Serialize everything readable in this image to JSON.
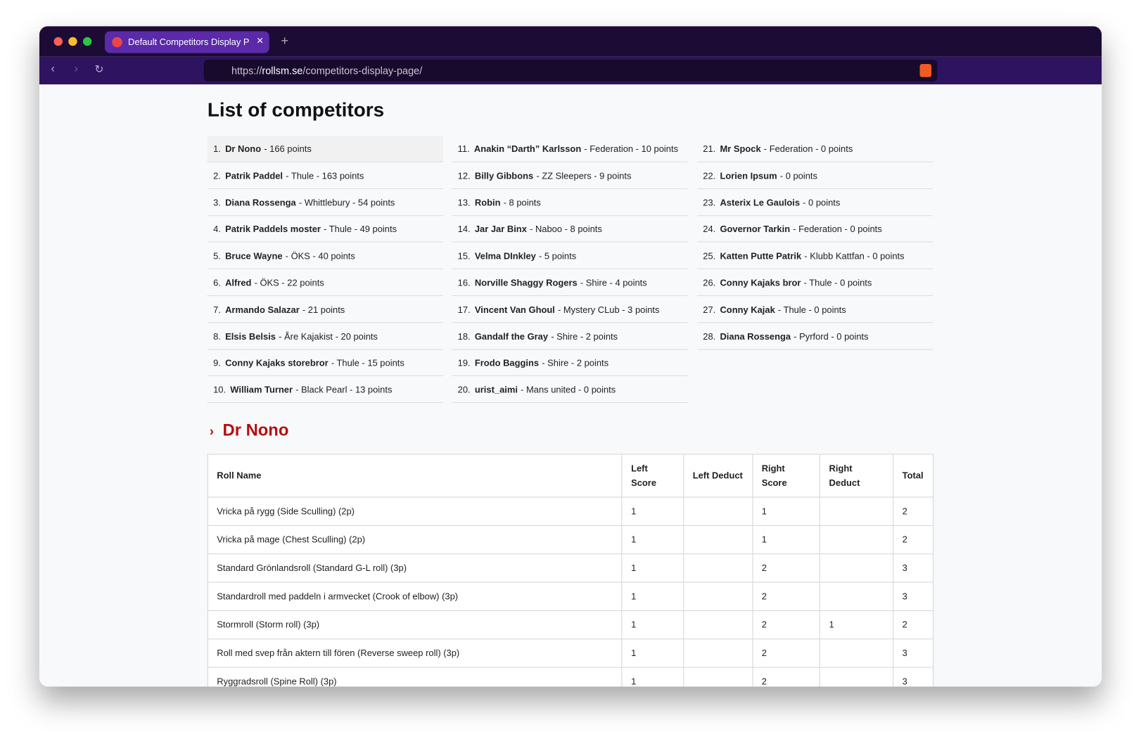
{
  "browser": {
    "tab_title": "Default Competitors Display P",
    "url": {
      "scheme": "https://",
      "domain": "rollsm.se",
      "path": "/competitors-display-page/"
    }
  },
  "heading": "List of competitors",
  "competitors": [
    {
      "rank": "1.",
      "name": "Dr Nono",
      "detail": "- 166 points"
    },
    {
      "rank": "2.",
      "name": "Patrik Paddel",
      "detail": "- Thule - 163 points"
    },
    {
      "rank": "3.",
      "name": "Diana Rossenga",
      "detail": "- Whittlebury - 54 points"
    },
    {
      "rank": "4.",
      "name": "Patrik Paddels moster",
      "detail": "- Thule - 49 points"
    },
    {
      "rank": "5.",
      "name": "Bruce Wayne",
      "detail": "- ÖKS - 40 points"
    },
    {
      "rank": "6.",
      "name": "Alfred",
      "detail": "- ÖKS - 22 points"
    },
    {
      "rank": "7.",
      "name": "Armando Salazar",
      "detail": "- 21 points"
    },
    {
      "rank": "8.",
      "name": "Elsis Belsis",
      "detail": "- Åre Kajakist - 20 points"
    },
    {
      "rank": "9.",
      "name": "Conny Kajaks storebror",
      "detail": "- Thule - 15 points"
    },
    {
      "rank": "10.",
      "name": "William Turner",
      "detail": "- Black Pearl - 13 points"
    },
    {
      "rank": "11.",
      "name": "Anakin “Darth” Karlsson",
      "detail": "- Federation - 10 points"
    },
    {
      "rank": "12.",
      "name": "Billy Gibbons",
      "detail": "- ZZ Sleepers - 9 points"
    },
    {
      "rank": "13.",
      "name": "Robin",
      "detail": "- 8 points"
    },
    {
      "rank": "14.",
      "name": "Jar Jar Binx",
      "detail": "- Naboo - 8 points"
    },
    {
      "rank": "15.",
      "name": "Velma DInkley",
      "detail": "- 5 points"
    },
    {
      "rank": "16.",
      "name": "Norville Shaggy Rogers",
      "detail": "- Shire - 4 points"
    },
    {
      "rank": "17.",
      "name": "Vincent Van Ghoul",
      "detail": "- Mystery CLub - 3 points"
    },
    {
      "rank": "18.",
      "name": "Gandalf the Gray",
      "detail": "- Shire - 2 points"
    },
    {
      "rank": "19.",
      "name": "Frodo Baggins",
      "detail": "- Shire - 2 points"
    },
    {
      "rank": "20.",
      "name": "urist_aimi",
      "detail": "- Mans united - 0 points"
    },
    {
      "rank": "21.",
      "name": "Mr Spock",
      "detail": "- Federation - 0 points"
    },
    {
      "rank": "22.",
      "name": "Lorien Ipsum",
      "detail": "- 0 points"
    },
    {
      "rank": "23.",
      "name": "Asterix Le Gaulois",
      "detail": "- 0 points"
    },
    {
      "rank": "24.",
      "name": "Governor Tarkin",
      "detail": "- Federation - 0 points"
    },
    {
      "rank": "25.",
      "name": "Katten Putte Patrik",
      "detail": "- Klubb Kattfan - 0 points"
    },
    {
      "rank": "26.",
      "name": "Conny Kajaks bror",
      "detail": "- Thule - 0 points"
    },
    {
      "rank": "27.",
      "name": "Conny Kajak",
      "detail": "- Thule - 0 points"
    },
    {
      "rank": "28.",
      "name": "Diana Rossenga",
      "detail": "- Pyrford - 0 points"
    }
  ],
  "section": {
    "title": "Dr Nono",
    "table": {
      "headers": [
        "Roll Name",
        "Left Score",
        "Left Deduct",
        "Right Score",
        "Right Deduct",
        "Total"
      ],
      "rows": [
        [
          "Vricka på rygg (Side Sculling) (2p)",
          1,
          null,
          1,
          null,
          2
        ],
        [
          "Vricka på mage (Chest Sculling) (2p)",
          1,
          null,
          1,
          null,
          2
        ],
        [
          "Standard Grönlandsroll (Standard G-L roll) (3p)",
          1,
          null,
          2,
          null,
          3
        ],
        [
          "Standardroll med paddeln i armvecket (Crook of elbow) (3p)",
          1,
          null,
          2,
          null,
          3
        ],
        [
          "Stormroll (Storm roll) (3p)",
          1,
          null,
          2,
          1,
          2
        ],
        [
          "Roll med svep från aktern till fören (Reverse sweep roll) (3p)",
          1,
          null,
          2,
          null,
          3
        ],
        [
          "Ryggradsroll (Spine Roll) (3p)",
          1,
          null,
          2,
          null,
          3
        ]
      ]
    }
  }
}
